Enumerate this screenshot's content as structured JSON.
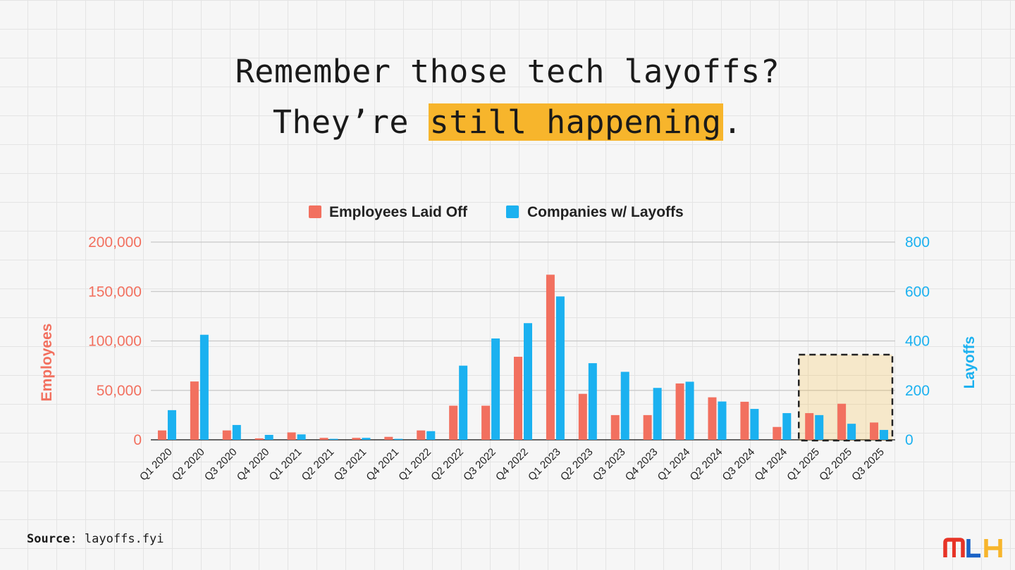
{
  "headline": {
    "line1": "Remember those tech layoffs?",
    "line2_prefix": "They’re ",
    "line2_highlight": "still happening",
    "line2_suffix": "."
  },
  "source": {
    "label": "Source",
    "separator": ": ",
    "value": "layoffs.fyi"
  },
  "logo": {
    "letters": [
      "M",
      "L",
      "H"
    ],
    "colors": [
      "#e73427",
      "#1b63c6",
      "#f7b52c"
    ]
  },
  "colors": {
    "employees": "#f2705f",
    "companies": "#1bb1f0",
    "highlight": "#f7b52c"
  },
  "chart_data": {
    "type": "bar",
    "title": "",
    "categories": [
      "Q1 2020",
      "Q2 2020",
      "Q3 2020",
      "Q4 2020",
      "Q1 2021",
      "Q2 2021",
      "Q3 2021",
      "Q4 2021",
      "Q1 2022",
      "Q2 2022",
      "Q3 2022",
      "Q4 2022",
      "Q1 2023",
      "Q2 2023",
      "Q3 2023",
      "Q4 2023",
      "Q1 2024",
      "Q2 2024",
      "Q3 2024",
      "Q4 2024",
      "Q1 2025",
      "Q2 2025",
      "Q3 2025"
    ],
    "series": [
      {
        "name": "Employees Laid Off",
        "axis": "left",
        "values": [
          9500,
          59000,
          9500,
          1500,
          7500,
          2000,
          2000,
          3000,
          9500,
          34500,
          34500,
          84000,
          167000,
          46500,
          25000,
          25000,
          57000,
          43000,
          38500,
          13000,
          27000,
          36500,
          17500
        ]
      },
      {
        "name": "Companies w/ Layoffs",
        "axis": "right",
        "values": [
          120,
          425,
          60,
          20,
          22,
          4,
          8,
          4,
          35,
          300,
          410,
          472,
          580,
          310,
          275,
          210,
          235,
          155,
          125,
          108,
          100,
          65,
          40
        ]
      }
    ],
    "yLeft": {
      "label": "Employees",
      "ylim": [
        0,
        200000
      ],
      "ticks": [
        "0",
        "50,000",
        "100,000",
        "150,000",
        "200,000"
      ]
    },
    "yRight": {
      "label": "Layoffs",
      "ylim": [
        0,
        800
      ],
      "ticks": [
        "0",
        "200",
        "400",
        "600",
        "800"
      ]
    },
    "highlight_categories": [
      "Q1 2025",
      "Q2 2025",
      "Q3 2025"
    ],
    "legend": "top",
    "grid": true
  }
}
